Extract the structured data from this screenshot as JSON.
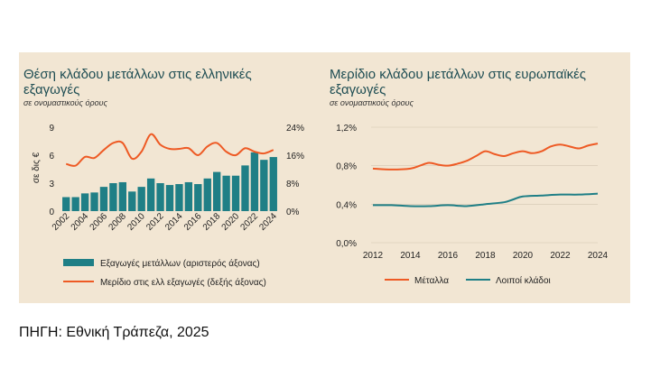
{
  "source": "ΠΗΓΗ: Εθνική Τράπεζα, 2025",
  "colors": {
    "teal": "#1f7f86",
    "orange": "#ee5a24",
    "title": "#1e4d53",
    "panel_bg": "#f2e6d3"
  },
  "chart_data": [
    {
      "type": "bar",
      "title_line1": "Θέση κλάδου μετάλλων στις ελληνικές",
      "title_line2": "εξαγωγές",
      "subtitle": "σε ονομαστικούς όρους",
      "ylabel": "σε δις €",
      "categories": [
        "2002",
        "2003",
        "2004",
        "2005",
        "2006",
        "2007",
        "2008",
        "2009",
        "2010",
        "2011",
        "2012",
        "2013",
        "2014",
        "2015",
        "2016",
        "2017",
        "2018",
        "2019",
        "2020",
        "2021",
        "2022",
        "2023",
        "2024"
      ],
      "x_tick_labels": [
        "2002",
        "2004",
        "2006",
        "2008",
        "2010",
        "2012",
        "2014",
        "2016",
        "2018",
        "2020",
        "2022",
        "2024"
      ],
      "ylim_left": [
        0,
        9
      ],
      "yticks_left": [
        "0",
        "3",
        "6",
        "9"
      ],
      "ylim_right": [
        0,
        24
      ],
      "yticks_right": [
        "0%",
        "8%",
        "16%",
        "24%"
      ],
      "series": [
        {
          "name": "Εξαγωγές μετάλλων (αριστερός άξονας)",
          "type": "bar",
          "axis": "left",
          "values": [
            1.5,
            1.5,
            1.9,
            2.0,
            2.6,
            3.0,
            3.1,
            2.1,
            2.6,
            3.5,
            3.0,
            2.8,
            2.9,
            3.1,
            2.9,
            3.5,
            4.2,
            3.8,
            3.8,
            4.9,
            6.3,
            5.5,
            5.8
          ]
        },
        {
          "name": "Μερίδιο στις ελλ εξαγωγές (δεξής άξονας)",
          "type": "line",
          "axis": "right",
          "values": [
            13.5,
            13.0,
            15.5,
            15.2,
            17.5,
            19.5,
            19.5,
            15.0,
            17.0,
            22.0,
            19.0,
            17.8,
            17.8,
            18.0,
            16.0,
            18.5,
            19.5,
            17.0,
            16.0,
            18.0,
            17.0,
            16.5,
            17.5
          ]
        }
      ]
    },
    {
      "type": "line",
      "title_line1": "Μερίδιο κλάδου μετάλλων στις ευρωπαϊκές",
      "title_line2": "εξαγωγές",
      "subtitle": "σε ονομαστικούς όρους",
      "x_tick_labels": [
        "2012",
        "2014",
        "2016",
        "2018",
        "2020",
        "2022",
        "2024"
      ],
      "xlim": [
        2012,
        2024
      ],
      "ylim": [
        0,
        1.2
      ],
      "yticks": [
        "0,0%",
        "0,4%",
        "0,8%",
        "1,2%"
      ],
      "series": [
        {
          "name": "Μέταλλα",
          "x": [
            2012,
            2013,
            2014,
            2014.5,
            2015,
            2015.5,
            2016,
            2016.5,
            2017,
            2017.5,
            2018,
            2018.5,
            2019,
            2019.5,
            2020,
            2020.5,
            2021,
            2021.5,
            2022,
            2022.5,
            2023,
            2023.5,
            2024
          ],
          "values": [
            0.77,
            0.76,
            0.77,
            0.8,
            0.83,
            0.81,
            0.8,
            0.82,
            0.85,
            0.9,
            0.95,
            0.92,
            0.9,
            0.93,
            0.95,
            0.93,
            0.95,
            1.0,
            1.02,
            1.0,
            0.98,
            1.01,
            1.03
          ]
        },
        {
          "name": "Λοιποί κλάδοι",
          "x": [
            2012,
            2013,
            2014,
            2015,
            2016,
            2017,
            2018,
            2019,
            2019.5,
            2020,
            2021,
            2022,
            2023,
            2024
          ],
          "values": [
            0.39,
            0.39,
            0.38,
            0.38,
            0.39,
            0.38,
            0.4,
            0.42,
            0.45,
            0.48,
            0.49,
            0.5,
            0.5,
            0.51
          ]
        }
      ]
    }
  ]
}
